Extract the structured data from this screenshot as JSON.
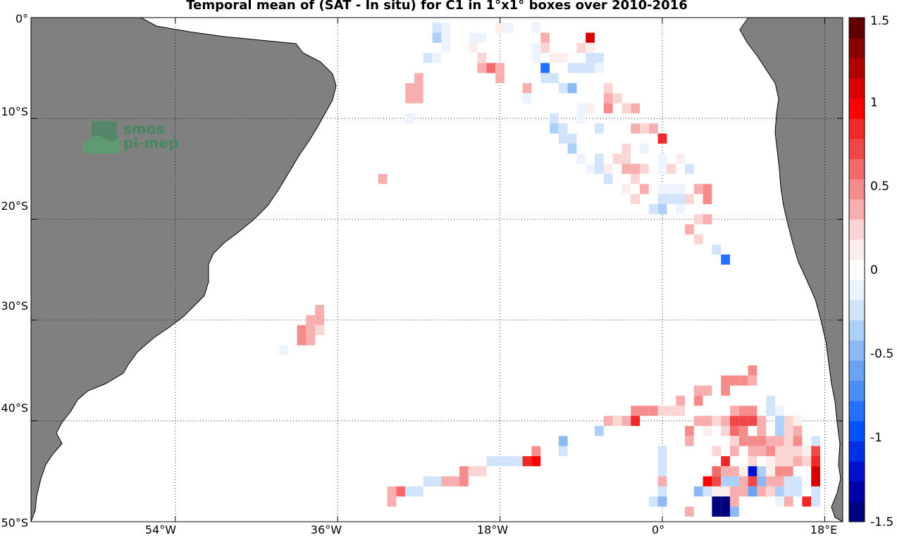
{
  "title": "Temporal mean of (SAT - In situ) for C1 in 1°x1° boxes over 2010-2016",
  "watermark": {
    "line1": "smos",
    "line2": "pi-mep",
    "color": "#3a8a5a"
  },
  "axes": {
    "y_ticks": [
      "0°",
      "10°S",
      "20°S",
      "30°S",
      "40°S",
      "50°S"
    ],
    "x_ticks": [
      "54°W",
      "36°W",
      "18°W",
      "0°",
      "18°E"
    ]
  },
  "colorbar": {
    "ticks": [
      "1.5",
      "1",
      "0.5",
      "0",
      "-0.5",
      "-1",
      "-1.5"
    ],
    "range": [
      -1.5,
      1.5
    ],
    "colors": [
      "#00007f",
      "#0000a8",
      "#0010cc",
      "#0030e6",
      "#0052ff",
      "#2470ff",
      "#4c8cf5",
      "#6aa2f5",
      "#8cb8f5",
      "#acd0f8",
      "#d2e4fb",
      "#eef4fd",
      "#ffffff",
      "#fdeeee",
      "#fbd4d4",
      "#f8aeae",
      "#f58c8c",
      "#f26a6a",
      "#f04848",
      "#f02828",
      "#ff0000",
      "#d80000",
      "#b00000",
      "#880000",
      "#600000"
    ]
  },
  "map": {
    "land_color": "#808080",
    "lon_range": [
      -70,
      20
    ],
    "lat_range": [
      -50,
      0
    ],
    "grid_lons": [
      -54,
      -36,
      -18,
      0,
      18
    ],
    "grid_lats": [
      -10,
      -20,
      -30,
      -40
    ],
    "region": "South Atlantic"
  },
  "chart_data": {
    "type": "heatmap",
    "title": "Temporal mean of (SAT - In situ) for C1 in 1°x1° boxes over 2010-2016",
    "value_range": [
      -1.5,
      1.5
    ],
    "cells": [
      [
        -25,
        -1,
        -0.3
      ],
      [
        -24,
        -1,
        -0.1
      ],
      [
        -21,
        -1,
        -0.05
      ],
      [
        -18,
        -1,
        0.1
      ],
      [
        -17,
        -1,
        -0.1
      ],
      [
        -14,
        -1,
        -0.1
      ],
      [
        -25,
        -2,
        -0.4
      ],
      [
        -24,
        -2,
        -0.1
      ],
      [
        -21,
        -2,
        -0.1
      ],
      [
        -20,
        -2,
        -0.1
      ],
      [
        -13,
        -2,
        0.3
      ],
      [
        -8,
        -2,
        1.1
      ],
      [
        -24,
        -3,
        -0.1
      ],
      [
        -23,
        -3,
        -0.05
      ],
      [
        -21,
        -3,
        0.1
      ],
      [
        -14,
        -3,
        -0.1
      ],
      [
        -13,
        -3,
        0.2
      ],
      [
        -9,
        -3,
        0.2
      ],
      [
        -8,
        -3,
        0.1
      ],
      [
        -26,
        -4,
        -0.2
      ],
      [
        -25,
        -4,
        -0.1
      ],
      [
        -20,
        -4,
        0.2
      ],
      [
        -14,
        -4,
        -0.1
      ],
      [
        -12,
        -4,
        0.1
      ],
      [
        -11,
        -4,
        0.1
      ],
      [
        -8,
        -4,
        -0.2
      ],
      [
        -7,
        -4,
        -0.2
      ],
      [
        -20,
        -5,
        0.4
      ],
      [
        -19,
        -5,
        0.6
      ],
      [
        -18,
        -5,
        0.4
      ],
      [
        -13,
        -5,
        -0.8
      ],
      [
        -10,
        -5,
        -0.2
      ],
      [
        -9,
        -5,
        -0.2
      ],
      [
        -8,
        -5,
        -0.3
      ],
      [
        -7,
        -5,
        -0.1
      ],
      [
        -27,
        -6,
        0.3
      ],
      [
        -18,
        -6,
        0.4
      ],
      [
        -13,
        -6,
        -0.3
      ],
      [
        -12,
        -6,
        -0.2
      ],
      [
        -28,
        -7,
        0.3
      ],
      [
        -27,
        -7,
        0.4
      ],
      [
        -15,
        -7,
        0.3
      ],
      [
        -11,
        -7,
        -0.3
      ],
      [
        -10,
        -7,
        -0.5
      ],
      [
        -6,
        -7,
        0.2
      ],
      [
        -28,
        -8,
        0.3
      ],
      [
        -27,
        -8,
        0.4
      ],
      [
        -15,
        -8,
        -0.1
      ],
      [
        -6,
        -8,
        0.4
      ],
      [
        -5,
        -8,
        0.2
      ],
      [
        -9,
        -9,
        -0.1
      ],
      [
        -8,
        -9,
        0.1
      ],
      [
        -6,
        -9,
        0.5
      ],
      [
        -4,
        -9,
        0.2
      ],
      [
        -3,
        -9,
        0.4
      ],
      [
        -28,
        -10,
        -0.1
      ],
      [
        -12,
        -10,
        -0.3
      ],
      [
        -9,
        -10,
        -0.1
      ],
      [
        -12,
        -11,
        -0.4
      ],
      [
        -11,
        -11,
        -0.3
      ],
      [
        -7,
        -11,
        -0.2
      ],
      [
        -3,
        -11,
        0.3
      ],
      [
        -2,
        -11,
        0.2
      ],
      [
        -1,
        -11,
        0.3
      ],
      [
        -11,
        -12,
        -0.3
      ],
      [
        -10,
        -12,
        -0.2
      ],
      [
        0,
        -12,
        0.8
      ],
      [
        -10,
        -13,
        -0.4
      ],
      [
        -4,
        -13,
        0.2
      ],
      [
        -2,
        -13,
        -0.1
      ],
      [
        -9,
        -14,
        -0.1
      ],
      [
        -7,
        -14,
        -0.3
      ],
      [
        -5,
        -14,
        0.2
      ],
      [
        -4,
        -14,
        0.2
      ],
      [
        0,
        -14,
        -0.1
      ],
      [
        2,
        -14,
        0.1
      ],
      [
        -8,
        -15,
        -0.1
      ],
      [
        -7,
        -15,
        -0.2
      ],
      [
        -6,
        -15,
        0.1
      ],
      [
        -4,
        -15,
        0.3
      ],
      [
        -3,
        -15,
        0.3
      ],
      [
        -2,
        -15,
        0.2
      ],
      [
        0,
        -15,
        -0.1
      ],
      [
        1,
        -15,
        0.2
      ],
      [
        3,
        -15,
        -0.2
      ],
      [
        -31,
        -16,
        0.4
      ],
      [
        -6,
        -16,
        -0.2
      ],
      [
        -3,
        -16,
        0.2
      ],
      [
        -4,
        -17,
        0.1
      ],
      [
        -2,
        -17,
        0.3
      ],
      [
        0,
        -17,
        -0.1
      ],
      [
        1,
        -17,
        -0.1
      ],
      [
        2,
        -17,
        -0.1
      ],
      [
        4,
        -17,
        0.3
      ],
      [
        5,
        -17,
        0.5
      ],
      [
        -3,
        -18,
        0.2
      ],
      [
        0,
        -18,
        -0.3
      ],
      [
        1,
        -18,
        -0.2
      ],
      [
        2,
        -18,
        -0.2
      ],
      [
        3,
        -18,
        0.2
      ],
      [
        5,
        -18,
        0.5
      ],
      [
        -1,
        -19,
        -0.2
      ],
      [
        0,
        -19,
        -0.4
      ],
      [
        2,
        -19,
        -0.1
      ],
      [
        4,
        -20,
        0.2
      ],
      [
        5,
        -20,
        0.4
      ],
      [
        3,
        -21,
        0.4
      ],
      [
        4,
        -22,
        0.2
      ],
      [
        6,
        -23,
        -0.2
      ],
      [
        7,
        -24,
        -0.9
      ],
      [
        -38,
        -29,
        0.4
      ],
      [
        -39,
        -30,
        0.4
      ],
      [
        -38,
        -30,
        0.4
      ],
      [
        -40,
        -31,
        0.5
      ],
      [
        -39,
        -31,
        0.4
      ],
      [
        -38,
        -31,
        0.2
      ],
      [
        -40,
        -32,
        0.5
      ],
      [
        -39,
        -32,
        0.3
      ],
      [
        -42,
        -33,
        -0.1
      ],
      [
        10,
        -35,
        0.5
      ],
      [
        7,
        -36,
        0.5
      ],
      [
        8,
        -36,
        0.5
      ],
      [
        9,
        -36,
        0.5
      ],
      [
        10,
        -36,
        0.3
      ],
      [
        4,
        -37,
        0.4
      ],
      [
        5,
        -37,
        0.4
      ],
      [
        7,
        -37,
        0.5
      ],
      [
        2,
        -38,
        0.3
      ],
      [
        4,
        -38,
        0.5
      ],
      [
        12,
        -38,
        -0.2
      ],
      [
        -3,
        -39,
        0.5
      ],
      [
        -2,
        -39,
        0.5
      ],
      [
        -1,
        -39,
        0.5
      ],
      [
        0,
        -39,
        0.2
      ],
      [
        1,
        -39,
        0.2
      ],
      [
        2,
        -39,
        0.2
      ],
      [
        8,
        -39,
        0.4
      ],
      [
        9,
        -39,
        0.5
      ],
      [
        10,
        -39,
        0.5
      ],
      [
        12,
        -39,
        -0.3
      ],
      [
        13,
        -39,
        -0.1
      ],
      [
        -6,
        -40,
        0.3
      ],
      [
        -5,
        -40,
        0.2
      ],
      [
        -4,
        -40,
        0.3
      ],
      [
        -3,
        -40,
        0.8
      ],
      [
        4,
        -40,
        0.4
      ],
      [
        5,
        -40,
        0.4
      ],
      [
        6,
        -40,
        0.2
      ],
      [
        7,
        -40,
        0.4
      ],
      [
        8,
        -40,
        0.7
      ],
      [
        9,
        -40,
        0.7
      ],
      [
        10,
        -40,
        0.7
      ],
      [
        11,
        -40,
        0.3
      ],
      [
        13,
        -40,
        -0.4
      ],
      [
        14,
        -40,
        0.2
      ],
      [
        15,
        -40,
        0.1
      ],
      [
        -7,
        -41,
        -0.4
      ],
      [
        3,
        -41,
        0.5
      ],
      [
        5,
        -41,
        0.1
      ],
      [
        7,
        -41,
        0.2
      ],
      [
        8,
        -41,
        0.6
      ],
      [
        9,
        -41,
        0.5
      ],
      [
        11,
        -41,
        0.3
      ],
      [
        13,
        -41,
        -0.4
      ],
      [
        14,
        -41,
        0.2
      ],
      [
        15,
        -41,
        0.3
      ],
      [
        -11,
        -42,
        -0.5
      ],
      [
        3,
        -42,
        0.4
      ],
      [
        8,
        -42,
        0.2
      ],
      [
        9,
        -42,
        0.5
      ],
      [
        10,
        -42,
        0.5
      ],
      [
        11,
        -42,
        0.5
      ],
      [
        12,
        -42,
        0.3
      ],
      [
        13,
        -42,
        0.3
      ],
      [
        14,
        -42,
        0.2
      ],
      [
        15,
        -42,
        0.5
      ],
      [
        17,
        -42,
        -0.2
      ],
      [
        -14,
        -43,
        0.5
      ],
      [
        -11,
        -43,
        -0.2
      ],
      [
        0,
        -43,
        -0.3
      ],
      [
        6,
        -43,
        0.2
      ],
      [
        8,
        -43,
        0.4
      ],
      [
        10,
        -43,
        0.3
      ],
      [
        11,
        -43,
        0.3
      ],
      [
        12,
        -43,
        0.5
      ],
      [
        13,
        -43,
        0.2
      ],
      [
        14,
        -43,
        0.2
      ],
      [
        15,
        -43,
        0.2
      ],
      [
        16,
        -43,
        0.1
      ],
      [
        17,
        -43,
        0.7
      ],
      [
        -19,
        -44,
        -0.3
      ],
      [
        -18,
        -44,
        -0.2
      ],
      [
        -17,
        -44,
        -0.3
      ],
      [
        -16,
        -44,
        -0.3
      ],
      [
        -15,
        -44,
        0.8
      ],
      [
        -14,
        -44,
        0.9
      ],
      [
        0,
        -44,
        -0.2
      ],
      [
        7,
        -44,
        0.8
      ],
      [
        10,
        -44,
        0.2
      ],
      [
        12,
        -44,
        0.1
      ],
      [
        13,
        -44,
        0.2
      ],
      [
        14,
        -44,
        0.2
      ],
      [
        15,
        -44,
        0.3
      ],
      [
        16,
        -44,
        0.2
      ],
      [
        17,
        -44,
        0.8
      ],
      [
        -22,
        -45,
        0.5
      ],
      [
        -21,
        -45,
        0.2
      ],
      [
        -20,
        -45,
        0.2
      ],
      [
        0,
        -45,
        -0.2
      ],
      [
        6,
        -45,
        0.6
      ],
      [
        7,
        -45,
        0.4
      ],
      [
        8,
        -45,
        0.3
      ],
      [
        9,
        -45,
        0.1
      ],
      [
        10,
        -45,
        -1.2
      ],
      [
        11,
        -45,
        -0.4
      ],
      [
        12,
        -45,
        0.1
      ],
      [
        13,
        -45,
        0.5
      ],
      [
        14,
        -45,
        0.5
      ],
      [
        17,
        -45,
        1.1
      ],
      [
        -26,
        -46,
        -0.3
      ],
      [
        -25,
        -46,
        -0.2
      ],
      [
        -24,
        -46,
        0.3
      ],
      [
        -23,
        -46,
        0.3
      ],
      [
        -22,
        -46,
        0.5
      ],
      [
        0,
        -46,
        0.4
      ],
      [
        5,
        -46,
        0.9
      ],
      [
        6,
        -46,
        0.7
      ],
      [
        7,
        -46,
        -0.4
      ],
      [
        8,
        -46,
        -0.4
      ],
      [
        9,
        -46,
        0.3
      ],
      [
        10,
        -46,
        0.7
      ],
      [
        11,
        -46,
        -0.5
      ],
      [
        12,
        -46,
        0.4
      ],
      [
        13,
        -46,
        0.4
      ],
      [
        14,
        -46,
        -0.2
      ],
      [
        15,
        -46,
        -0.3
      ],
      [
        17,
        -46,
        1.1
      ],
      [
        -30,
        -47,
        0.4
      ],
      [
        -29,
        -47,
        0.6
      ],
      [
        -28,
        -47,
        -0.2
      ],
      [
        -27,
        -47,
        -0.3
      ],
      [
        0,
        -47,
        -0.2
      ],
      [
        4,
        -47,
        -0.5
      ],
      [
        5,
        -47,
        -0.2
      ],
      [
        6,
        -47,
        0.1
      ],
      [
        7,
        -47,
        0.1
      ],
      [
        8,
        -47,
        0.3
      ],
      [
        9,
        -47,
        0.4
      ],
      [
        10,
        -47,
        -0.6
      ],
      [
        11,
        -47,
        0.3
      ],
      [
        12,
        -47,
        0.2
      ],
      [
        13,
        -47,
        -0.4
      ],
      [
        14,
        -47,
        -0.3
      ],
      [
        15,
        -47,
        -0.2
      ],
      [
        17,
        -47,
        -0.3
      ],
      [
        -30,
        -48,
        0.4
      ],
      [
        -1,
        -48,
        -0.3
      ],
      [
        0,
        -48,
        -0.5
      ],
      [
        6,
        -48,
        -1.5
      ],
      [
        7,
        -48,
        -1.5
      ],
      [
        8,
        -48,
        0.3
      ],
      [
        13,
        -48,
        -0.1
      ],
      [
        14,
        -48,
        0.3
      ],
      [
        16,
        -48,
        0.8
      ],
      [
        17,
        -48,
        -0.3
      ],
      [
        3,
        -49,
        0.3
      ],
      [
        6,
        -49,
        -1.5
      ],
      [
        7,
        -49,
        -1.5
      ],
      [
        8,
        -49,
        -0.5
      ]
    ]
  }
}
